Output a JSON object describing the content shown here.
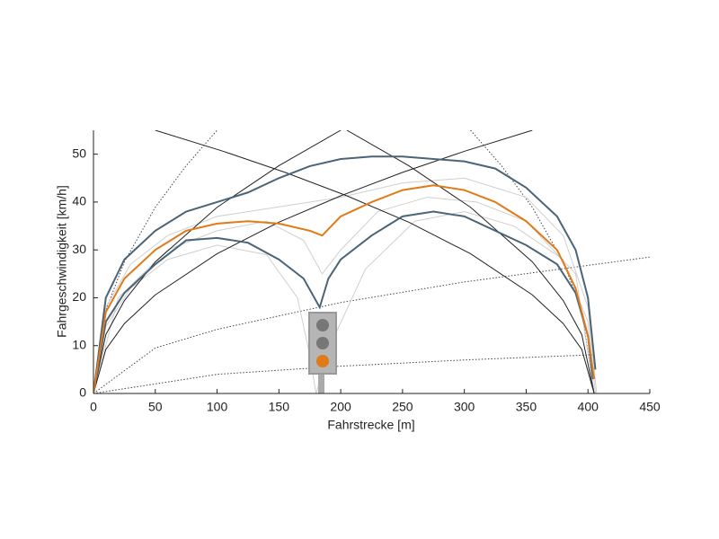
{
  "chart_data": {
    "type": "line",
    "xlabel": "Fahrstrecke [m]",
    "ylabel": "Fahrgeschwindigkeit [km/h]",
    "xlim": [
      0,
      450
    ],
    "xticks": [
      0,
      50,
      100,
      150,
      200,
      250,
      300,
      350,
      400,
      450
    ],
    "ylim": [
      0,
      55
    ],
    "yticks": [
      0,
      10,
      20,
      30,
      40,
      50
    ],
    "series": [
      {
        "color": "#444444",
        "style": "dotted",
        "x": [
          0,
          10,
          25,
          50,
          75,
          100
        ],
        "values": [
          0,
          17.4,
          27.5,
          38.9,
          47.6,
          55
        ]
      },
      {
        "color": "#444444",
        "style": "dotted",
        "x": [
          305,
          330,
          355,
          380,
          395,
          405
        ],
        "values": [
          55,
          47.6,
          38.9,
          27.5,
          17.4,
          0
        ]
      },
      {
        "color": "#444444",
        "style": "dotted",
        "x": [
          0,
          50,
          100,
          200,
          300,
          450
        ],
        "values": [
          0,
          9.5,
          13.4,
          19,
          23.3,
          28.5
        ]
      },
      {
        "color": "#444444",
        "style": "dotted",
        "x": [
          0,
          100,
          200,
          300,
          405
        ],
        "values": [
          0,
          4,
          5.7,
          7,
          8.1
        ]
      },
      {
        "color": "#cfcfcf",
        "style": "solid",
        "x": [
          0,
          10,
          30,
          60,
          100,
          140,
          165,
          175,
          180,
          195,
          220,
          260,
          300,
          340,
          380,
          400,
          406
        ],
        "values": [
          0,
          14,
          22,
          28,
          31,
          29,
          20,
          8,
          0,
          12,
          26,
          36,
          38,
          35,
          28,
          15,
          0
        ]
      },
      {
        "color": "#cfcfcf",
        "style": "solid",
        "x": [
          0,
          10,
          30,
          60,
          100,
          150,
          200,
          250,
          300,
          350,
          380,
          400,
          407
        ],
        "values": [
          0,
          18,
          27,
          33,
          37,
          39,
          41,
          44,
          45,
          41,
          33,
          18,
          0
        ]
      },
      {
        "color": "#cfcfcf",
        "style": "solid",
        "x": [
          0,
          20,
          60,
          100,
          140,
          170,
          185,
          200,
          230,
          270,
          310,
          350,
          390,
          405
        ],
        "values": [
          0,
          20,
          30,
          34,
          36,
          32,
          25,
          30,
          38,
          41,
          40,
          36,
          25,
          0
        ]
      },
      {
        "color": "#222222",
        "style": "solid",
        "x": [
          0,
          10,
          25,
          50,
          100,
          150,
          200
        ],
        "values": [
          0,
          12.3,
          19.4,
          27.5,
          38.9,
          47.6,
          55
        ]
      },
      {
        "color": "#222222",
        "style": "solid",
        "x": [
          205,
          255,
          305,
          355,
          380,
          395,
          405
        ],
        "values": [
          55,
          47.6,
          38.9,
          27.5,
          19.4,
          12.3,
          0
        ]
      },
      {
        "color": "#222222",
        "style": "solid",
        "x": [
          0,
          10,
          25,
          50,
          100,
          150,
          200,
          250,
          300,
          355
        ],
        "values": [
          0,
          9.2,
          14.6,
          20.6,
          29.2,
          35.8,
          41.3,
          46.2,
          50.6,
          55
        ]
      },
      {
        "color": "#222222",
        "style": "solid",
        "x": [
          50,
          105,
          155,
          205,
          255,
          305,
          355,
          380,
          395,
          405
        ],
        "values": [
          55,
          50.6,
          46.2,
          41.3,
          35.8,
          29.2,
          20.6,
          14.6,
          9.2,
          0
        ]
      },
      {
        "color": "#4a6478",
        "style": "solid",
        "x": [
          0,
          10,
          25,
          50,
          75,
          100,
          125,
          150,
          175,
          200,
          225,
          250,
          275,
          300,
          325,
          350,
          375,
          390,
          400,
          406
        ],
        "values": [
          0,
          20,
          28,
          34,
          38,
          40,
          42,
          45,
          47.5,
          49,
          49.5,
          49.5,
          49,
          48.5,
          47,
          43,
          37,
          30,
          20,
          5
        ]
      },
      {
        "color": "#4a6478",
        "style": "solid",
        "x": [
          0,
          10,
          25,
          50,
          75,
          100,
          125,
          150,
          170,
          183,
          190,
          200,
          225,
          250,
          275,
          300,
          325,
          350,
          375,
          390,
          400,
          404
        ],
        "values": [
          0,
          15,
          21,
          27,
          32,
          32.5,
          31.5,
          28,
          24,
          18,
          24,
          28,
          33,
          37,
          38,
          37,
          34,
          31,
          27,
          21,
          12,
          3
        ]
      },
      {
        "color": "#e07b1a",
        "style": "solid",
        "x": [
          0,
          10,
          25,
          50,
          75,
          100,
          125,
          150,
          175,
          185,
          200,
          225,
          250,
          275,
          300,
          325,
          350,
          375,
          390,
          400,
          405
        ],
        "values": [
          0,
          17,
          24,
          30,
          34,
          35.5,
          36,
          35.5,
          34,
          33,
          37,
          40,
          42.5,
          43.5,
          42.5,
          40,
          36,
          30,
          22,
          12,
          3
        ]
      }
    ]
  }
}
